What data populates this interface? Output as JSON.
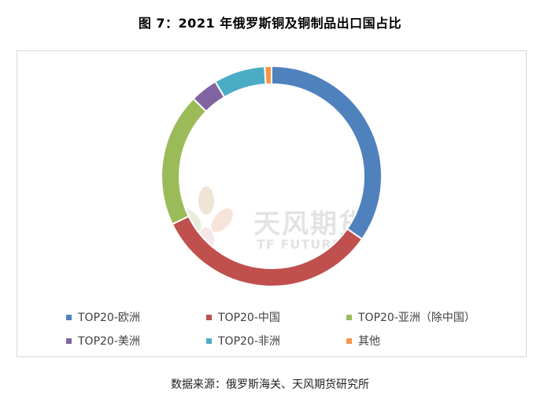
{
  "title": "图 7：2021 年俄罗斯铜及铜制品出口国占比",
  "source": "数据来源：俄罗斯海关、天风期货研究所",
  "watermark": {
    "cn": "天风期货",
    "en": "TF FUTURES"
  },
  "chart_data": {
    "type": "pie",
    "subtype": "donut",
    "legend_position": "bottom",
    "series": [
      {
        "name": "TOP20-欧洲",
        "value": 34.5,
        "color": "#4f81bd"
      },
      {
        "name": "TOP20-中国",
        "value": 33.0,
        "color": "#c0504d"
      },
      {
        "name": "TOP20-亚洲（除中国）",
        "value": 19.5,
        "color": "#9bbb59"
      },
      {
        "name": "TOP20-美洲",
        "value": 4.0,
        "color": "#8064a2"
      },
      {
        "name": "TOP20-非洲",
        "value": 7.5,
        "color": "#4bacc6"
      },
      {
        "name": "其他",
        "value": 1.0,
        "color": "#f79646"
      }
    ]
  }
}
